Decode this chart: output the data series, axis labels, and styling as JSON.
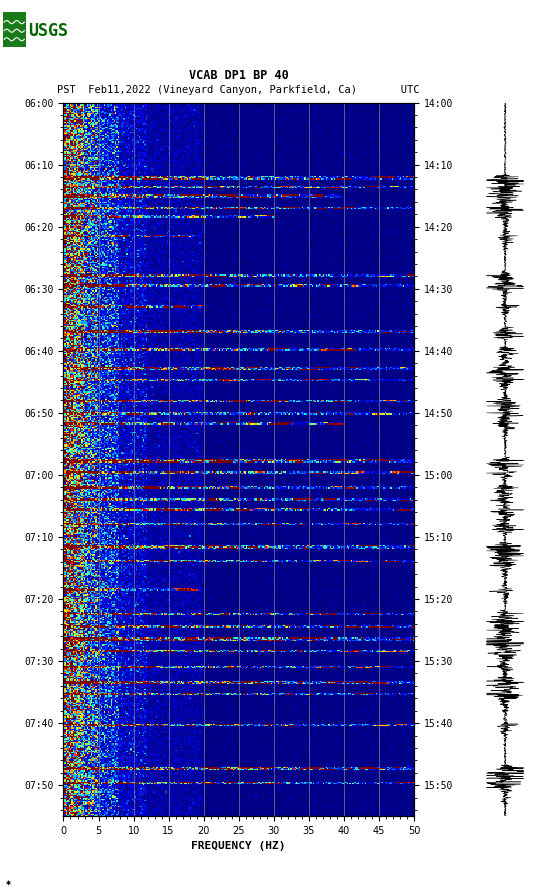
{
  "title_line1": "VCAB DP1 BP 40",
  "title_line2": "PST  Feb11,2022 (Vineyard Canyon, Parkfield, Ca)       UTC",
  "xlabel": "FREQUENCY (HZ)",
  "freq_min": 0,
  "freq_max": 50,
  "freq_ticks": [
    0,
    5,
    10,
    15,
    20,
    25,
    30,
    35,
    40,
    45,
    50
  ],
  "pst_ticks": [
    "06:00",
    "06:10",
    "06:20",
    "06:30",
    "06:40",
    "06:50",
    "07:00",
    "07:10",
    "07:20",
    "07:30",
    "07:40",
    "07:50"
  ],
  "utc_ticks": [
    "14:00",
    "14:10",
    "14:20",
    "14:30",
    "14:40",
    "14:50",
    "15:00",
    "15:10",
    "15:20",
    "15:30",
    "15:40",
    "15:50"
  ],
  "background_color": "#ffffff",
  "colormap": "jet",
  "vlines_freq": [
    5,
    10,
    15,
    20,
    25,
    30,
    35,
    40,
    45
  ],
  "vline_color": "#888888",
  "fig_width": 5.52,
  "fig_height": 8.92,
  "seed": 42,
  "total_minutes": 115,
  "n_freq": 250,
  "n_time": 580,
  "event_bands": [
    {
      "t": 60,
      "dt": 3,
      "max_f": 250,
      "strength": 18
    },
    {
      "t": 68,
      "dt": 2,
      "max_f": 250,
      "strength": 14
    },
    {
      "t": 75,
      "dt": 3,
      "max_f": 200,
      "strength": 16
    },
    {
      "t": 85,
      "dt": 2,
      "max_f": 250,
      "strength": 20
    },
    {
      "t": 92,
      "dt": 2,
      "max_f": 150,
      "strength": 12
    },
    {
      "t": 108,
      "dt": 2,
      "max_f": 100,
      "strength": 10
    },
    {
      "t": 140,
      "dt": 2,
      "max_f": 250,
      "strength": 18
    },
    {
      "t": 148,
      "dt": 2,
      "max_f": 250,
      "strength": 16
    },
    {
      "t": 165,
      "dt": 2,
      "max_f": 100,
      "strength": 12
    },
    {
      "t": 185,
      "dt": 3,
      "max_f": 250,
      "strength": 20
    },
    {
      "t": 200,
      "dt": 2,
      "max_f": 250,
      "strength": 14
    },
    {
      "t": 215,
      "dt": 3,
      "max_f": 250,
      "strength": 16
    },
    {
      "t": 225,
      "dt": 2,
      "max_f": 250,
      "strength": 12
    },
    {
      "t": 242,
      "dt": 2,
      "max_f": 250,
      "strength": 18
    },
    {
      "t": 252,
      "dt": 2,
      "max_f": 250,
      "strength": 14
    },
    {
      "t": 260,
      "dt": 2,
      "max_f": 200,
      "strength": 12
    },
    {
      "t": 290,
      "dt": 3,
      "max_f": 250,
      "strength": 20
    },
    {
      "t": 300,
      "dt": 2,
      "max_f": 250,
      "strength": 16
    },
    {
      "t": 312,
      "dt": 2,
      "max_f": 250,
      "strength": 14
    },
    {
      "t": 322,
      "dt": 2,
      "max_f": 250,
      "strength": 18
    },
    {
      "t": 330,
      "dt": 2,
      "max_f": 250,
      "strength": 16
    },
    {
      "t": 342,
      "dt": 2,
      "max_f": 250,
      "strength": 14
    },
    {
      "t": 360,
      "dt": 3,
      "max_f": 250,
      "strength": 22
    },
    {
      "t": 372,
      "dt": 2,
      "max_f": 250,
      "strength": 14
    },
    {
      "t": 395,
      "dt": 2,
      "max_f": 100,
      "strength": 10
    },
    {
      "t": 415,
      "dt": 2,
      "max_f": 250,
      "strength": 18
    },
    {
      "t": 425,
      "dt": 2,
      "max_f": 250,
      "strength": 20
    },
    {
      "t": 435,
      "dt": 3,
      "max_f": 250,
      "strength": 22
    },
    {
      "t": 445,
      "dt": 2,
      "max_f": 250,
      "strength": 18
    },
    {
      "t": 458,
      "dt": 2,
      "max_f": 250,
      "strength": 14
    },
    {
      "t": 470,
      "dt": 3,
      "max_f": 250,
      "strength": 24
    },
    {
      "t": 480,
      "dt": 2,
      "max_f": 250,
      "strength": 20
    },
    {
      "t": 505,
      "dt": 2,
      "max_f": 250,
      "strength": 16
    },
    {
      "t": 540,
      "dt": 3,
      "max_f": 250,
      "strength": 24
    },
    {
      "t": 552,
      "dt": 2,
      "max_f": 250,
      "strength": 18
    }
  ]
}
